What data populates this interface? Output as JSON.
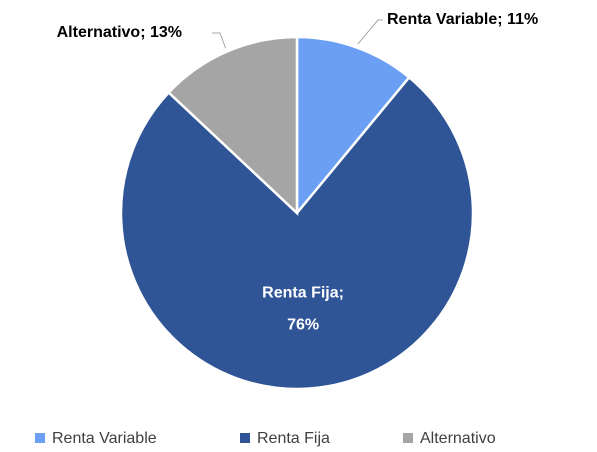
{
  "chart_data": {
    "type": "pie",
    "categories": [
      "Renta Variable",
      "Renta Fija",
      "Alternativo"
    ],
    "values": [
      11,
      76,
      13
    ],
    "value_labels": [
      "Renta Variable; 11%",
      "Renta Fija; 76%",
      "Alternativo; 13%"
    ],
    "colors": [
      "#6a9ff3",
      "#2f5597",
      "#a5a5a5"
    ],
    "legend": "bottom"
  }
}
